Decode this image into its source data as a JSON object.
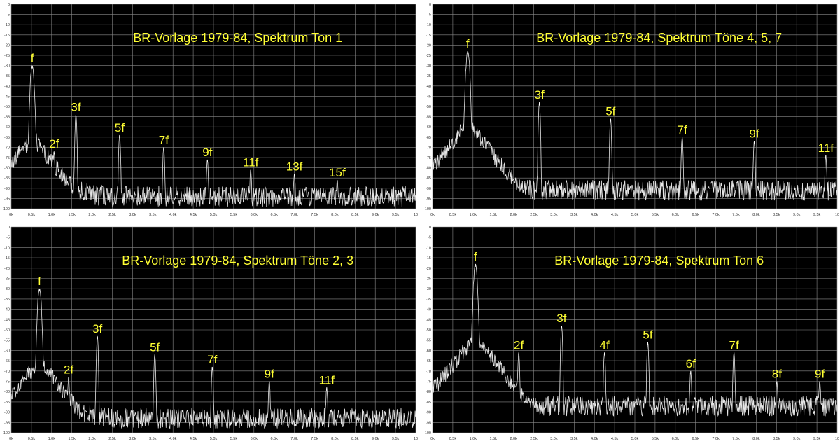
{
  "chart_data": [
    {
      "type": "line",
      "title": "BR-Vorlage 1979-84, Spektrum Ton 1",
      "xlim": [
        0,
        10000
      ],
      "ylim": [
        -100,
        0
      ],
      "x_ticks": [
        "0k",
        "0.5k",
        "1.0k",
        "1.5k",
        "2.0k",
        "2.5k",
        "3.0k",
        "3.5k",
        "4.0k",
        "4.5k",
        "5.0k",
        "5.5k",
        "6.0k",
        "6.5k",
        "7.0k",
        "7.5k",
        "8.0k",
        "8.5k",
        "9.0k",
        "9.5k",
        "10"
      ],
      "y_ticks": [
        "0",
        "-5",
        "-10",
        "-15",
        "-20",
        "-25",
        "-30",
        "-35",
        "-40",
        "-45",
        "-50",
        "-55",
        "-60",
        "-65",
        "-70",
        "-75",
        "-80",
        "-85",
        "-90",
        "-95",
        "-100"
      ],
      "grid": true,
      "noise_floor": -93,
      "peaks": [
        {
          "label": "f",
          "x": 520,
          "y": -30
        },
        {
          "label": "2f",
          "x": 1060,
          "y": -72
        },
        {
          "label": "3f",
          "x": 1600,
          "y": -54
        },
        {
          "label": "5f",
          "x": 2680,
          "y": -64
        },
        {
          "label": "7f",
          "x": 3770,
          "y": -70
        },
        {
          "label": "9f",
          "x": 4850,
          "y": -76
        },
        {
          "label": "11f",
          "x": 5920,
          "y": -81
        },
        {
          "label": "13f",
          "x": 7000,
          "y": -83
        },
        {
          "label": "15f",
          "x": 8060,
          "y": -86
        }
      ]
    },
    {
      "type": "line",
      "title": "BR-Vorlage 1979-84, Spektrum Töne 4, 5, 7",
      "xlim": [
        0,
        10000
      ],
      "ylim": [
        -100,
        0
      ],
      "x_ticks": [
        "0k",
        "0.5k",
        "1.0k",
        "1.5k",
        "2.0k",
        "2.5k",
        "3.0k",
        "3.5k",
        "4.0k",
        "4.5k",
        "5.0k",
        "5.5k",
        "6.0k",
        "6.5k",
        "7.0k",
        "7.5k",
        "8.0k",
        "8.5k",
        "9.0k",
        "9.5k",
        "10"
      ],
      "y_ticks": [
        "0",
        "-5",
        "-10",
        "-15",
        "-20",
        "-25",
        "-30",
        "-35",
        "-40",
        "-45",
        "-50",
        "-55",
        "-60",
        "-65",
        "-70",
        "-75",
        "-80",
        "-85",
        "-90",
        "-95",
        "-100"
      ],
      "grid": true,
      "noise_floor": -90,
      "peaks": [
        {
          "label": "f",
          "x": 870,
          "y": -23
        },
        {
          "label": "3f",
          "x": 2640,
          "y": -48
        },
        {
          "label": "5f",
          "x": 4400,
          "y": -56
        },
        {
          "label": "7f",
          "x": 6170,
          "y": -65
        },
        {
          "label": "9f",
          "x": 7950,
          "y": -67
        },
        {
          "label": "11f",
          "x": 9720,
          "y": -74
        }
      ]
    },
    {
      "type": "line",
      "title": "BR-Vorlage 1979-84, Spektrum Töne 2, 3",
      "xlim": [
        0,
        10000
      ],
      "ylim": [
        -100,
        0
      ],
      "x_ticks": [
        "0k",
        "0.5k",
        "1.0k",
        "1.5k",
        "2.0k",
        "2.5k",
        "3.0k",
        "3.5k",
        "4.0k",
        "4.5k",
        "5.0k",
        "5.5k",
        "6.0k",
        "6.5k",
        "7.0k",
        "7.5k",
        "8.0k",
        "8.5k",
        "9.0k",
        "9.5k",
        "10"
      ],
      "y_ticks": [
        "0",
        "-5",
        "-10",
        "-15",
        "-20",
        "-25",
        "-30",
        "-35",
        "-40",
        "-45",
        "-50",
        "-55",
        "-60",
        "-65",
        "-70",
        "-75",
        "-80",
        "-85",
        "-90",
        "-95",
        "-100"
      ],
      "grid": true,
      "noise_floor": -92,
      "peaks": [
        {
          "label": "f",
          "x": 700,
          "y": -30
        },
        {
          "label": "2f",
          "x": 1420,
          "y": -73
        },
        {
          "label": "3f",
          "x": 2130,
          "y": -53
        },
        {
          "label": "5f",
          "x": 3550,
          "y": -62
        },
        {
          "label": "7f",
          "x": 4970,
          "y": -68
        },
        {
          "label": "9f",
          "x": 6380,
          "y": -75
        },
        {
          "label": "11f",
          "x": 7800,
          "y": -78
        }
      ]
    },
    {
      "type": "line",
      "title": "BR-Vorlage 1979-84, Spektrum Ton 6",
      "xlim": [
        0,
        10000
      ],
      "ylim": [
        -100,
        0
      ],
      "x_ticks": [
        "0k",
        "0.5k",
        "1.0k",
        "1.5k",
        "2.0k",
        "2.5k",
        "3.0k",
        "3.5k",
        "4.0k",
        "4.5k",
        "5.0k",
        "5.5k",
        "6.0k",
        "6.5k",
        "7.0k",
        "7.5k",
        "8.0k",
        "8.5k",
        "9.0k",
        "9.5k",
        "10"
      ],
      "y_ticks": [
        "0",
        "-5",
        "-10",
        "-15",
        "-20",
        "-25",
        "-30",
        "-35",
        "-40",
        "-45",
        "-50",
        "-55",
        "-60",
        "-65",
        "-70",
        "-75",
        "-80",
        "-85",
        "-90",
        "-95",
        "-100"
      ],
      "grid": true,
      "noise_floor": -86,
      "peaks": [
        {
          "label": "f",
          "x": 1060,
          "y": -18
        },
        {
          "label": "2f",
          "x": 2130,
          "y": -61
        },
        {
          "label": "3f",
          "x": 3190,
          "y": -48
        },
        {
          "label": "4f",
          "x": 4250,
          "y": -61
        },
        {
          "label": "5f",
          "x": 5320,
          "y": -56
        },
        {
          "label": "6f",
          "x": 6380,
          "y": -70
        },
        {
          "label": "7f",
          "x": 7450,
          "y": -61
        },
        {
          "label": "8f",
          "x": 8510,
          "y": -75
        },
        {
          "label": "9f",
          "x": 9570,
          "y": -75
        }
      ]
    }
  ]
}
